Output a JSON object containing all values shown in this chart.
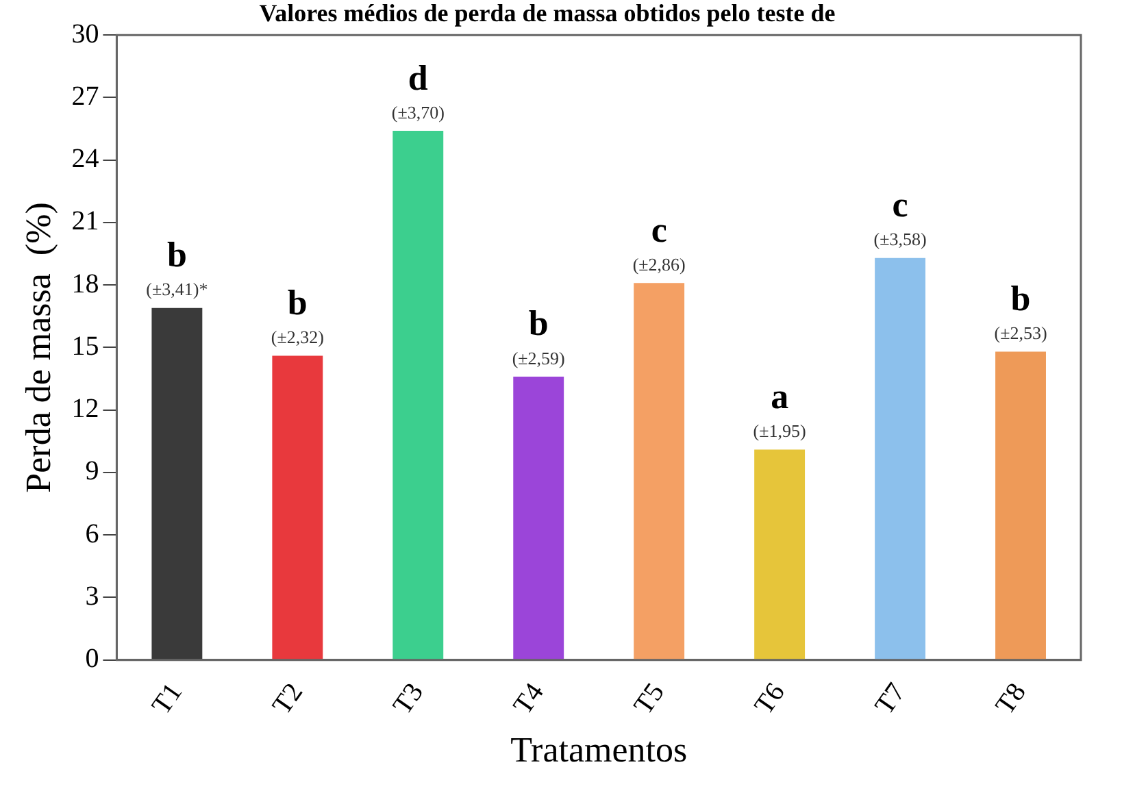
{
  "chart_data": {
    "type": "bar",
    "title": "Valores médios de perda de massa obtidos pelo teste de",
    "xlabel": "Tratamentos",
    "ylabel": "Perda de massa  (%)",
    "categories": [
      "T1",
      "T2",
      "T3",
      "T4",
      "T5",
      "T6",
      "T7",
      "T8"
    ],
    "values": [
      16.9,
      14.6,
      25.4,
      13.6,
      18.1,
      10.1,
      19.3,
      14.8
    ],
    "colors": [
      "#3a3a3a",
      "#e8393d",
      "#3ccf8e",
      "#9b45d9",
      "#f4a064",
      "#e6c53a",
      "#8cc0ec",
      "#ee9a58"
    ],
    "ylim": [
      0,
      30
    ],
    "yticks": [
      0,
      3,
      6,
      9,
      12,
      15,
      18,
      21,
      24,
      27,
      30
    ],
    "grid": false,
    "annotations": [
      {
        "text": "b",
        "x": "T1",
        "y": 16.9
      },
      {
        "text": "(±3,41)*",
        "x": "T1",
        "y": 16.9
      },
      {
        "text": "b",
        "x": "T2",
        "y": 14.6
      },
      {
        "text": "(±2,32)",
        "x": "T2",
        "y": 14.6
      },
      {
        "text": "d",
        "x": "T3",
        "y": 25.4
      },
      {
        "text": "(±3,70)",
        "x": "T3",
        "y": 25.4
      },
      {
        "text": "b",
        "x": "T4",
        "y": 13.6
      },
      {
        "text": "(±2,59)",
        "x": "T4",
        "y": 13.6
      },
      {
        "text": "c",
        "x": "T5",
        "y": 18.1
      },
      {
        "text": "(±2,86)",
        "x": "T5",
        "y": 18.1
      },
      {
        "text": "a",
        "x": "T6",
        "y": 10.1
      },
      {
        "text": "(±1,95)",
        "x": "T6",
        "y": 10.1
      },
      {
        "text": "c",
        "x": "T7",
        "y": 19.3
      },
      {
        "text": "(±3,58)",
        "x": "T7",
        "y": 19.3
      },
      {
        "text": "b",
        "x": "T8",
        "y": 14.8
      },
      {
        "text": "(±2,53)",
        "x": "T8",
        "y": 14.8
      }
    ]
  }
}
